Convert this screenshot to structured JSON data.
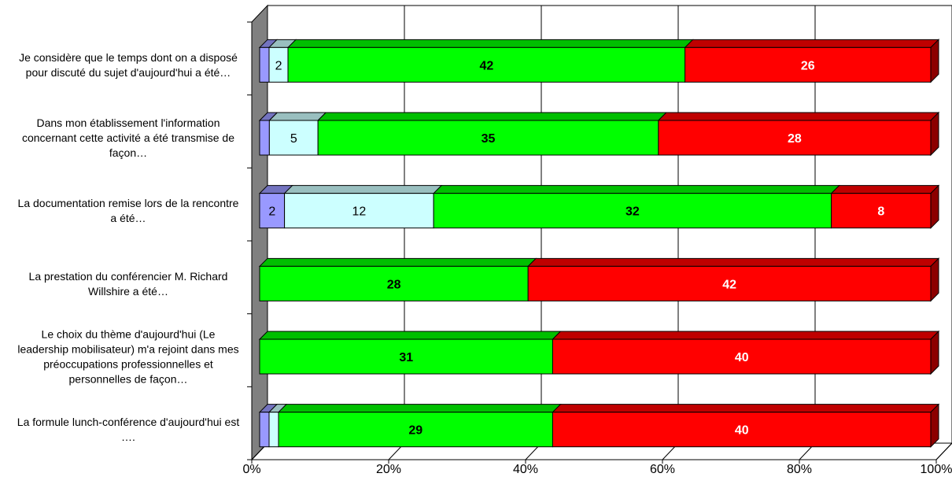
{
  "chart_data": {
    "type": "bar",
    "orientation": "horizontal",
    "stacked": "percent",
    "three_d": true,
    "categories": [
      "Je considère que le temps dont on a disposé pour discuté du sujet d'aujourd'hui a été…",
      "Dans mon établissement l'information concernant cette activité a été transmise de façon…",
      "La documentation remise lors de la rencontre a été…",
      "La prestation du conférencier M. Richard Willshire a été…",
      "Le choix du thème d'aujourd'hui (Le leadership mobilisateur) m'a rejoint dans mes préoccupations professionnelles et personnelles de façon…",
      "La formule lunch-conférence d'aujourd'hui est …."
    ],
    "category_lines": [
      [
        "Je considère que le temps dont on a disposé",
        "pour discuté du sujet d'aujourd'hui a été…"
      ],
      [
        "Dans mon établissement l'information",
        "concernant cette activité a été transmise de",
        "façon…"
      ],
      [
        "La documentation remise lors de la rencontre",
        "a été…"
      ],
      [
        "La prestation du conférencier M. Richard",
        "Willshire a été…"
      ],
      [
        "Le choix du thème d'aujourd'hui (Le",
        "leadership mobilisateur) m'a rejoint dans mes",
        "préoccupations professionnelles et",
        "personnelles de façon…"
      ],
      [
        "La formule lunch-conférence d'aujourd'hui est",
        "…."
      ]
    ],
    "series": [
      {
        "color": "#9999ff",
        "values": [
          1,
          1,
          2,
          0,
          0,
          1
        ]
      },
      {
        "color": "#ccffff",
        "values": [
          2,
          5,
          12,
          0,
          0,
          1
        ]
      },
      {
        "color": "#00ff00",
        "values": [
          42,
          35,
          32,
          28,
          31,
          29
        ]
      },
      {
        "color": "#ff0000",
        "values": [
          26,
          28,
          8,
          42,
          40,
          40
        ]
      }
    ],
    "data_labels": [
      [
        null,
        "2",
        "42",
        "26"
      ],
      [
        null,
        "5",
        "35",
        "28"
      ],
      [
        "2",
        "12",
        "32",
        "8"
      ],
      [
        null,
        null,
        "28",
        "42"
      ],
      [
        null,
        null,
        "31",
        "40"
      ],
      [
        null,
        null,
        "29",
        "40"
      ]
    ],
    "x_ticks": [
      "0%",
      "20%",
      "40%",
      "60%",
      "80%",
      "100%"
    ],
    "xlim": [
      0,
      100
    ],
    "grid": true,
    "legend": "none"
  }
}
